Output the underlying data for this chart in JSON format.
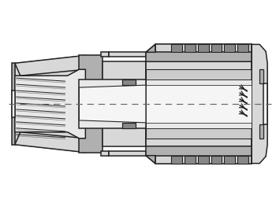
{
  "bg_color": "#ffffff",
  "lc": "#222222",
  "c_white": "#f5f5f5",
  "c_light": "#d8d8d8",
  "c_mid": "#b0b0b0",
  "c_dark": "#888888",
  "c_vdark": "#555555",
  "c_bore": "#e8e8e8",
  "c_inner": "#cccccc",
  "lw": 1.1,
  "figsize": [
    3.5,
    2.63
  ],
  "dpi": 100
}
